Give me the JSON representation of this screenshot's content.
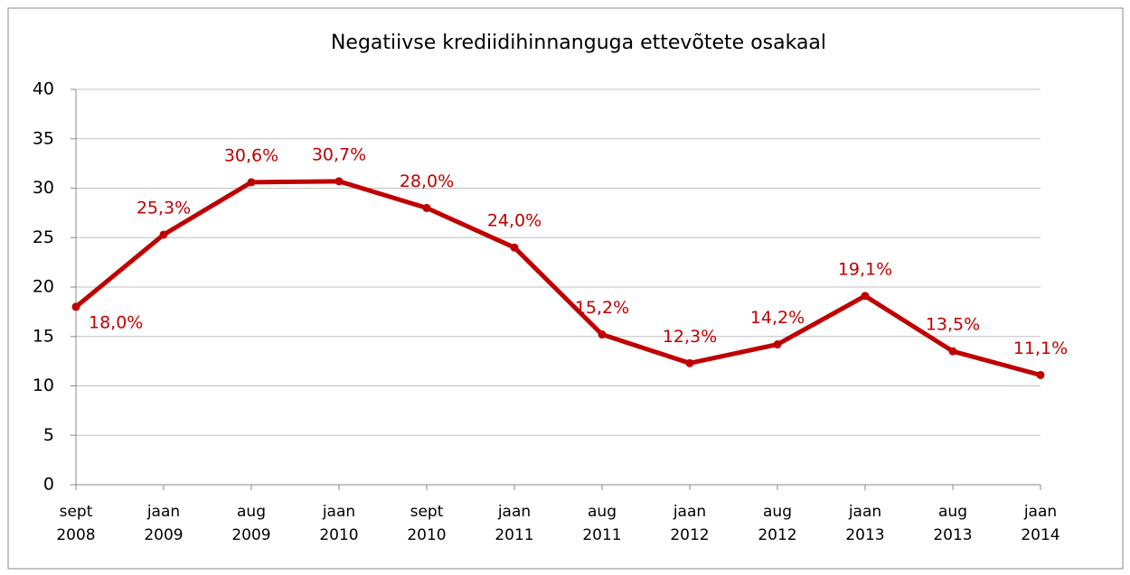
{
  "chart_data": {
    "type": "line",
    "title": "Negatiivse krediidihinnanguga ettevõtete osakaal",
    "categories": [
      "sept 2008",
      "jaan 2009",
      "aug 2009",
      "jaan 2010",
      "sept 2010",
      "jaan 2011",
      "aug 2011",
      "jaan 2012",
      "aug 2012",
      "jaan 2013",
      "aug 2013",
      "jaan 2014"
    ],
    "series": [
      {
        "name": "Negatiivse krediidihinnanguga ettevõtete osakaal",
        "color": "#c00000",
        "values": [
          18.0,
          25.3,
          30.6,
          30.7,
          28.0,
          24.0,
          15.2,
          12.3,
          14.2,
          19.1,
          13.5,
          11.1
        ],
        "value_labels": [
          "18,0%",
          "25,3%",
          "30,6%",
          "30,7%",
          "28,0%",
          "24,0%",
          "15,2%",
          "12,3%",
          "14,2%",
          "19,1%",
          "13,5%",
          "11,1%"
        ]
      }
    ],
    "ylim": [
      0,
      40
    ],
    "yticks": [
      0,
      5,
      10,
      15,
      20,
      25,
      30,
      35,
      40
    ],
    "grid": true
  }
}
